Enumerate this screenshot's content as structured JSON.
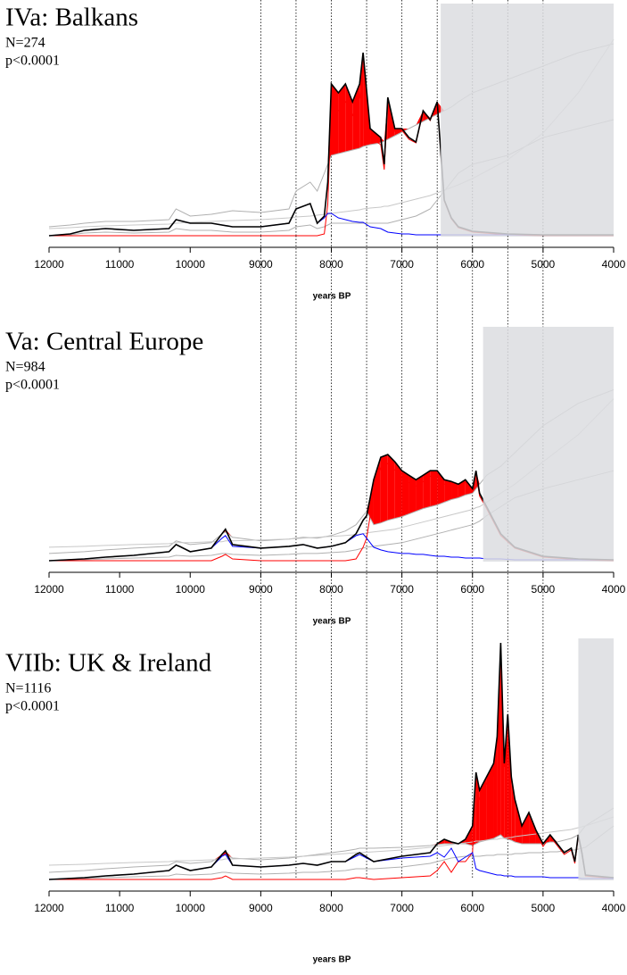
{
  "chart_data": [
    {
      "type": "line",
      "title": "IVa: Balkans",
      "annotations": [
        "N=274",
        "p<0.0001"
      ],
      "xlabel": "years BP",
      "xlim": [
        12000,
        4000
      ],
      "xticks": [
        12000,
        11000,
        10000,
        9000,
        8000,
        7000,
        6000,
        5000,
        4000
      ],
      "ylim": [
        0,
        260
      ],
      "vlines": [
        9000,
        8500,
        8000,
        7500,
        7000,
        6500,
        6000,
        5500,
        5000
      ],
      "shade_from": 6450,
      "shade_color": "#dcdde0",
      "fill_color": "#ff0000",
      "x": [
        12000,
        11700,
        11500,
        11200,
        10800,
        10300,
        10200,
        10000,
        9700,
        9400,
        9000,
        8600,
        8500,
        8300,
        8200,
        8100,
        8050,
        8000,
        7900,
        7800,
        7700,
        7600,
        7550,
        7450,
        7300,
        7250,
        7200,
        7100,
        7000,
        6900,
        6800,
        6700,
        6600,
        6500,
        6400,
        6300,
        6200,
        6000,
        5500,
        5000,
        4500,
        4000
      ],
      "series": [
        {
          "color": "#b0b0b0",
          "values": [
            10,
            12,
            14,
            16,
            16,
            18,
            30,
            22,
            24,
            28,
            26,
            30,
            50,
            60,
            50,
            70,
            80,
            90,
            92,
            94,
            96,
            98,
            100,
            102,
            104,
            106,
            108,
            112,
            116,
            120,
            124,
            128,
            132,
            136,
            140,
            144,
            150,
            160,
            175,
            190,
            205,
            215
          ]
        },
        {
          "color": "#b0b0b0",
          "values": [
            0,
            1,
            3,
            4,
            3,
            4,
            8,
            6,
            6,
            4,
            4,
            6,
            10,
            12,
            8,
            10,
            12,
            14,
            14,
            14,
            14,
            14,
            14,
            14,
            14,
            14,
            14,
            16,
            18,
            20,
            22,
            26,
            30,
            40,
            50,
            60,
            70,
            80,
            90,
            110,
            120,
            130
          ]
        },
        {
          "color": "#c8c8c8",
          "values": [
            8,
            9,
            10,
            11,
            12,
            13,
            14,
            15,
            16,
            17,
            18,
            20,
            21,
            22,
            23,
            24,
            24,
            25,
            26,
            27,
            28,
            29,
            30,
            31,
            32,
            33,
            33,
            35,
            37,
            39,
            41,
            43,
            45,
            48,
            51,
            54,
            57,
            64,
            85,
            115,
            160,
            220
          ]
        },
        {
          "color": "#ff0000",
          "values": [
            0,
            0,
            0,
            0,
            0,
            0,
            0,
            0,
            0,
            0,
            0,
            0,
            0,
            0,
            0,
            2,
            35,
            145,
            140,
            150,
            135,
            155,
            190,
            110,
            102,
            74,
            150,
            117,
            118,
            108,
            104,
            139,
            129,
            149,
            39,
            19,
            9,
            4,
            1,
            0,
            0,
            0
          ]
        },
        {
          "color": "#0000ff",
          "values": [
            0,
            2,
            6,
            8,
            6,
            8,
            18,
            14,
            14,
            10,
            10,
            14,
            30,
            36,
            14,
            20,
            25,
            25,
            20,
            18,
            16,
            15,
            15,
            10,
            8,
            6,
            4,
            3,
            2,
            2,
            1,
            1,
            1,
            1,
            1,
            1,
            1,
            1,
            1,
            1,
            1,
            1
          ]
        },
        {
          "color": "#000000",
          "values": [
            0,
            2,
            6,
            8,
            6,
            8,
            18,
            14,
            14,
            10,
            10,
            14,
            30,
            36,
            14,
            22,
            60,
            170,
            160,
            170,
            150,
            170,
            205,
            120,
            110,
            80,
            155,
            120,
            120,
            110,
            105,
            140,
            130,
            150,
            40,
            20,
            10,
            5,
            2,
            1,
            1,
            1
          ]
        }
      ]
    },
    {
      "type": "line",
      "title": "Va: Central Europe",
      "annotations": [
        "N=984",
        "p<0.0001"
      ],
      "xlabel": "years BP",
      "xlim": [
        12000,
        4000
      ],
      "xticks": [
        12000,
        11000,
        10000,
        9000,
        8000,
        7000,
        6000,
        5000,
        4000
      ],
      "ylim": [
        0,
        260
      ],
      "vlines": [
        9000,
        8500,
        8000,
        7500,
        7000,
        6500,
        6000,
        5500,
        5000
      ],
      "shade_from": 5850,
      "shade_color": "#dcdde0",
      "fill_color": "#ff0000",
      "x": [
        12000,
        11500,
        11200,
        10800,
        10300,
        10200,
        10000,
        9700,
        9550,
        9500,
        9400,
        9000,
        8600,
        8400,
        8200,
        8000,
        7800,
        7650,
        7550,
        7500,
        7400,
        7300,
        7200,
        7100,
        7000,
        6900,
        6800,
        6700,
        6600,
        6500,
        6400,
        6300,
        6200,
        6100,
        6000,
        5950,
        5900,
        5800,
        5600,
        5400,
        5000,
        4500,
        4000
      ],
      "series": [
        {
          "color": "#b0b0b0",
          "values": [
            8,
            10,
            12,
            14,
            16,
            22,
            18,
            20,
            30,
            32,
            26,
            22,
            24,
            26,
            25,
            28,
            33,
            40,
            50,
            55,
            40,
            42,
            45,
            47,
            49,
            52,
            55,
            58,
            60,
            62,
            65,
            68,
            70,
            73,
            75,
            80,
            85,
            95,
            105,
            120,
            150,
            175,
            190
          ]
        },
        {
          "color": "#b0b0b0",
          "values": [
            0,
            1,
            2,
            3,
            4,
            6,
            5,
            6,
            8,
            8,
            7,
            6,
            7,
            8,
            8,
            9,
            10,
            12,
            14,
            15,
            16,
            17,
            18,
            19,
            20,
            22,
            24,
            26,
            28,
            30,
            32,
            34,
            36,
            38,
            40,
            42,
            44,
            50,
            60,
            70,
            80,
            90,
            100
          ]
        },
        {
          "color": "#c8c8c8",
          "values": [
            15,
            16,
            17,
            18,
            19,
            20,
            20,
            21,
            21,
            22,
            22,
            23,
            24,
            25,
            26,
            27,
            28,
            29,
            30,
            31,
            32,
            33,
            34,
            35,
            37,
            39,
            41,
            43,
            45,
            47,
            49,
            51,
            53,
            55,
            57,
            59,
            60,
            65,
            75,
            85,
            110,
            140,
            180
          ]
        },
        {
          "color": "#ff0000",
          "values": [
            0,
            0,
            0,
            0,
            0,
            0,
            0,
            0,
            5,
            7,
            2,
            0,
            0,
            0,
            0,
            0,
            0,
            2,
            15,
            25,
            75,
            103,
            108,
            101,
            92,
            87,
            83,
            88,
            94,
            95,
            85,
            84,
            81,
            87,
            77,
            97,
            72,
            58,
            28,
            14,
            4,
            1,
            0
          ]
        },
        {
          "color": "#0000ff",
          "values": [
            0,
            2,
            4,
            6,
            10,
            18,
            10,
            14,
            25,
            28,
            16,
            14,
            16,
            18,
            14,
            16,
            20,
            28,
            30,
            25,
            15,
            12,
            10,
            9,
            8,
            8,
            7,
            7,
            6,
            5,
            5,
            4,
            4,
            3,
            3,
            3,
            3,
            2,
            2,
            1,
            1,
            1,
            1
          ]
        },
        {
          "color": "#000000",
          "values": [
            0,
            2,
            4,
            6,
            10,
            18,
            10,
            14,
            30,
            35,
            18,
            14,
            16,
            18,
            14,
            16,
            20,
            30,
            45,
            50,
            90,
            115,
            118,
            110,
            100,
            95,
            90,
            95,
            100,
            100,
            90,
            88,
            85,
            90,
            80,
            100,
            75,
            60,
            30,
            15,
            5,
            2,
            1
          ]
        }
      ]
    },
    {
      "type": "line",
      "title": "VIIb: UK & Ireland",
      "annotations": [
        "N=1116",
        "p<0.0001"
      ],
      "xlabel": "years BP",
      "xlim": [
        12000,
        4000
      ],
      "xticks": [
        12000,
        11000,
        10000,
        9000,
        8000,
        7000,
        6000,
        5000,
        4000
      ],
      "ylim": [
        0,
        270
      ],
      "vlines": [
        9000,
        8500,
        8000,
        7500,
        7000,
        6500,
        6000,
        5500,
        5000
      ],
      "shade_from": 4500,
      "shade_color": "#dcdde0",
      "fill_color": "#ff0000",
      "x": [
        12000,
        11500,
        11200,
        10800,
        10300,
        10200,
        10000,
        9700,
        9550,
        9500,
        9400,
        9000,
        8600,
        8400,
        8200,
        8000,
        7800,
        7650,
        7600,
        7400,
        7000,
        6600,
        6500,
        6400,
        6300,
        6200,
        6100,
        6000,
        5950,
        5900,
        5800,
        5700,
        5650,
        5600,
        5550,
        5500,
        5450,
        5400,
        5300,
        5200,
        5100,
        5000,
        4900,
        4800,
        4700,
        4600,
        4550,
        4500,
        4450,
        4400,
        4000
      ],
      "series": [
        {
          "color": "#b0b0b0",
          "values": [
            8,
            10,
            12,
            14,
            16,
            20,
            18,
            20,
            26,
            28,
            24,
            22,
            24,
            26,
            28,
            30,
            32,
            34,
            35,
            35,
            36,
            38,
            39,
            40,
            40,
            40,
            40,
            38,
            40,
            42,
            44,
            46,
            48,
            50,
            46,
            45,
            44,
            42,
            40,
            40,
            40,
            40,
            42,
            42,
            44,
            46,
            48,
            50,
            55,
            60,
            80
          ]
        },
        {
          "color": "#b0b0b0",
          "values": [
            0,
            1,
            2,
            3,
            4,
            6,
            5,
            6,
            8,
            8,
            7,
            6,
            7,
            8,
            8,
            9,
            10,
            12,
            12,
            12,
            14,
            18,
            20,
            22,
            24,
            25,
            26,
            26,
            26,
            26,
            27,
            27,
            28,
            28,
            28,
            28,
            28,
            29,
            29,
            30,
            30,
            30,
            31,
            31,
            32,
            33,
            33,
            34,
            35,
            36,
            60
          ]
        },
        {
          "color": "#c8c8c8",
          "values": [
            16,
            17,
            18,
            19,
            20,
            21,
            21,
            22,
            22,
            23,
            23,
            24,
            25,
            26,
            27,
            28,
            29,
            30,
            30,
            31,
            33,
            36,
            37,
            38,
            39,
            40,
            41,
            42,
            43,
            43,
            44,
            45,
            45,
            46,
            46,
            47,
            47,
            48,
            49,
            50,
            51,
            52,
            53,
            54,
            55,
            56,
            57,
            58,
            59,
            60,
            70
          ]
        },
        {
          "color": "#ff0000",
          "values": [
            0,
            0,
            0,
            0,
            0,
            0,
            0,
            0,
            2,
            4,
            0,
            0,
            0,
            0,
            0,
            0,
            0,
            2,
            2,
            0,
            2,
            4,
            10,
            20,
            8,
            20,
            20,
            30,
            108,
            90,
            107,
            124,
            155,
            260,
            126,
            181,
            111,
            87,
            57,
            72,
            52,
            37,
            48,
            38,
            28,
            33,
            18,
            48,
            29,
            4,
            1
          ]
        },
        {
          "color": "#0000ff",
          "values": [
            0,
            2,
            4,
            6,
            10,
            16,
            10,
            14,
            26,
            28,
            16,
            14,
            16,
            18,
            16,
            20,
            20,
            26,
            28,
            20,
            24,
            26,
            30,
            25,
            35,
            20,
            25,
            30,
            12,
            10,
            8,
            6,
            5,
            5,
            4,
            4,
            4,
            3,
            3,
            3,
            3,
            3,
            2,
            2,
            2,
            2,
            2,
            2,
            1,
            1,
            1
          ]
        },
        {
          "color": "#000000",
          "values": [
            0,
            2,
            4,
            6,
            10,
            16,
            10,
            14,
            28,
            32,
            16,
            14,
            16,
            18,
            16,
            20,
            20,
            28,
            30,
            20,
            26,
            30,
            40,
            45,
            42,
            40,
            45,
            60,
            120,
            100,
            115,
            130,
            160,
            265,
            130,
            185,
            115,
            90,
            60,
            75,
            55,
            40,
            50,
            40,
            30,
            35,
            20,
            50,
            30,
            5,
            2
          ]
        }
      ]
    }
  ]
}
